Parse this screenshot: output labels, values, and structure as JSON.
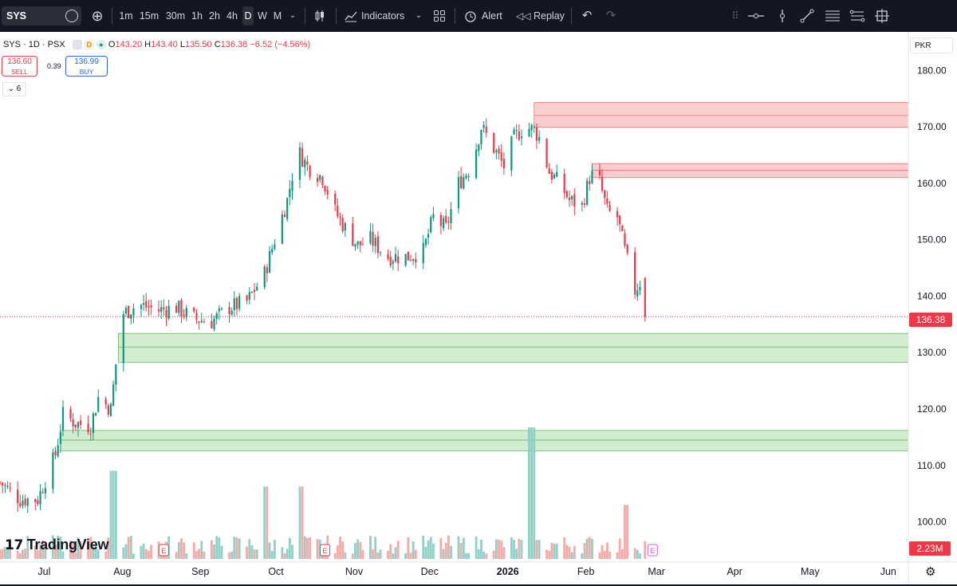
{
  "toolbar": {
    "symbol": "SYS",
    "timeframes": [
      "1m",
      "15m",
      "30m",
      "1h",
      "2h",
      "4h",
      "D",
      "W",
      "M"
    ],
    "active_timeframe": "D",
    "indicators_label": "Indicators",
    "alert_label": "Alert",
    "replay_label": "Replay"
  },
  "legend": {
    "title": "SYS · 1D · PSX",
    "badge_d": "D",
    "open_label": "O",
    "open": "143.20",
    "high_label": "H",
    "high": "143.40",
    "low_label": "L",
    "low": "135.50",
    "close_label": "C",
    "close": "136.38",
    "change": "−6.52 (−4.56%)"
  },
  "trade": {
    "sell_price": "136.60",
    "sell_label": "SELL",
    "spread": "0.39",
    "buy_price": "136.99",
    "buy_label": "BUY"
  },
  "indicators_collapsed_count": "6",
  "currency": "PKR",
  "current_price_tag": "136.38",
  "volume_tag": "2.23M",
  "logo_text": "TradingView",
  "colors": {
    "up": "#089981",
    "down": "#f23645",
    "vol_up": "#8fd0c7",
    "vol_down": "#f7a9a7",
    "supply_zone": "#fbc9c9",
    "demand_zone": "#cdeacb",
    "toolbar_bg": "#131722"
  },
  "chart_data": {
    "type": "candlestick",
    "symbol": "SYS",
    "interval": "1D",
    "exchange": "PSX",
    "y_axis_ticks": [
      "180.00",
      "170.00",
      "160.00",
      "150.00",
      "140.00",
      "130.00",
      "120.00",
      "110.00",
      "100.00"
    ],
    "ylim": [
      95,
      184
    ],
    "x_axis_labels": [
      "Jul",
      "Aug",
      "Sep",
      "Oct",
      "Nov",
      "Dec",
      "2026",
      "Feb",
      "Mar",
      "Apr",
      "May",
      "Jun"
    ],
    "x_start": "2025-06-16",
    "x_end": "2026-06-15",
    "last_bar": {
      "open": 143.2,
      "high": 143.4,
      "low": 135.5,
      "close": 136.38
    },
    "price_path": [
      [
        "2025-06-16",
        107
      ],
      [
        "2025-06-24",
        104
      ],
      [
        "2025-07-01",
        104
      ],
      [
        "2025-07-08",
        112
      ],
      [
        "2025-07-11",
        119
      ],
      [
        "2025-07-16",
        117.5
      ],
      [
        "2025-07-22",
        117
      ],
      [
        "2025-07-25",
        122
      ],
      [
        "2025-07-30",
        120
      ],
      [
        "2025-08-01",
        128
      ],
      [
        "2025-08-04",
        137
      ],
      [
        "2025-08-10",
        138.5
      ],
      [
        "2025-08-18",
        137.5
      ],
      [
        "2025-08-25",
        138
      ],
      [
        "2025-09-01",
        136
      ],
      [
        "2025-09-08",
        135.5
      ],
      [
        "2025-09-15",
        138
      ],
      [
        "2025-09-22",
        139
      ],
      [
        "2025-09-29",
        144
      ],
      [
        "2025-10-03",
        150
      ],
      [
        "2025-10-08",
        157
      ],
      [
        "2025-10-12",
        166
      ],
      [
        "2025-10-16",
        163
      ],
      [
        "2025-10-22",
        161
      ],
      [
        "2025-10-27",
        155
      ],
      [
        "2025-10-31",
        152
      ],
      [
        "2025-11-05",
        149
      ],
      [
        "2025-11-10",
        150
      ],
      [
        "2025-11-17",
        147
      ],
      [
        "2025-11-25",
        147
      ],
      [
        "2025-12-01",
        148
      ],
      [
        "2025-12-05",
        154
      ],
      [
        "2025-12-10",
        152
      ],
      [
        "2025-12-15",
        160
      ],
      [
        "2025-12-20",
        163
      ],
      [
        "2025-12-24",
        170
      ],
      [
        "2025-12-28",
        167
      ],
      [
        "2026-01-02",
        163
      ],
      [
        "2026-01-06",
        168
      ],
      [
        "2026-01-10",
        170
      ],
      [
        "2026-01-14",
        169.5
      ],
      [
        "2026-01-16",
        168
      ],
      [
        "2026-01-20",
        162
      ],
      [
        "2026-01-24",
        160
      ],
      [
        "2026-01-28",
        157
      ],
      [
        "2026-02-02",
        156
      ],
      [
        "2026-02-05",
        161
      ],
      [
        "2026-02-08",
        162
      ],
      [
        "2026-02-12",
        155
      ],
      [
        "2026-02-16",
        154
      ],
      [
        "2026-02-19",
        148
      ],
      [
        "2026-02-23",
        141
      ],
      [
        "2026-02-26",
        143.2
      ]
    ],
    "zones": [
      {
        "kind": "supply",
        "from": "2026-01-14",
        "top": 174.3,
        "mid": 172.0,
        "bottom": 169.9
      },
      {
        "kind": "supply",
        "from": "2026-02-06",
        "top": 163.5,
        "mid": 162.3,
        "bottom": 161.0
      },
      {
        "kind": "demand",
        "from": "2025-08-02",
        "top": 133.4,
        "mid": 131.0,
        "bottom": 128.3
      },
      {
        "kind": "demand",
        "from": "2025-07-10",
        "top": 116.2,
        "mid": 114.5,
        "bottom": 112.6
      }
    ],
    "volume_spikes": [
      {
        "date": "2026-01-13",
        "relative": 1.0
      },
      {
        "date": "2025-07-31",
        "relative": 0.67
      },
      {
        "date": "2025-09-29",
        "relative": 0.55
      },
      {
        "date": "2025-10-13",
        "relative": 0.55
      },
      {
        "date": "2026-02-20",
        "relative": 0.41
      }
    ],
    "earnings_markers": [
      "2025-08-20",
      "2025-10-23",
      "2026-03-02"
    ],
    "current_price": 136.38,
    "last_volume": "2.23M",
    "grid": true
  }
}
